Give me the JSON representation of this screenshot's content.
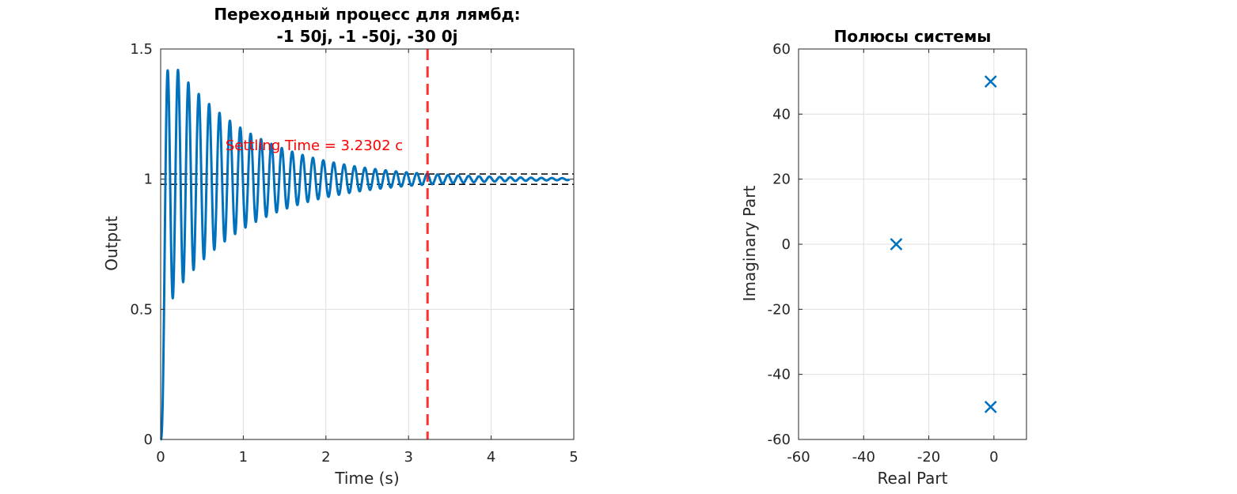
{
  "colors": {
    "series": "#0072BD",
    "setting_line": "#FF0000",
    "bounds": "#000000",
    "grid": "#DFDFDF",
    "axes": "#262626"
  },
  "chart_data": [
    {
      "type": "line",
      "title": "Переходный процесс для лямбд:",
      "subtitle": "-1 50j, -1 -50j, -30 0j",
      "xlabel": "Time (s)",
      "ylabel": "Output",
      "xlim": [
        0,
        5
      ],
      "ylim": [
        0,
        1.5
      ],
      "xticks": [
        "0",
        "1",
        "2",
        "3",
        "4",
        "5"
      ],
      "yticks": [
        "0",
        "0.5",
        "1",
        "1.5"
      ],
      "grid": true,
      "series": [
        {
          "model": "step response",
          "poles": {
            "oscillatory_real": -1,
            "oscillatory_imag": 50,
            "real": -30
          },
          "x_range": [
            0,
            4.95
          ],
          "final_value": 1.0,
          "peak": 1.42
        }
      ],
      "settling_band": [
        0.98,
        1.02
      ],
      "settling_time": 3.2302,
      "annotation": "Settling Time = 3.2302 c"
    },
    {
      "type": "scatter",
      "title": "Полюсы системы",
      "xlabel": "Real Part",
      "ylabel": "Imaginary Part",
      "xlim": [
        -60,
        10
      ],
      "ylim": [
        -60,
        60
      ],
      "xticks": [
        "-60",
        "-40",
        "-20",
        "0"
      ],
      "yticks": [
        "-60",
        "-40",
        "-20",
        "0",
        "20",
        "40",
        "60"
      ],
      "grid": true,
      "marker": "x",
      "points": [
        {
          "x": -1,
          "y": 50
        },
        {
          "x": -1,
          "y": -50
        },
        {
          "x": -30,
          "y": 0
        }
      ]
    }
  ]
}
